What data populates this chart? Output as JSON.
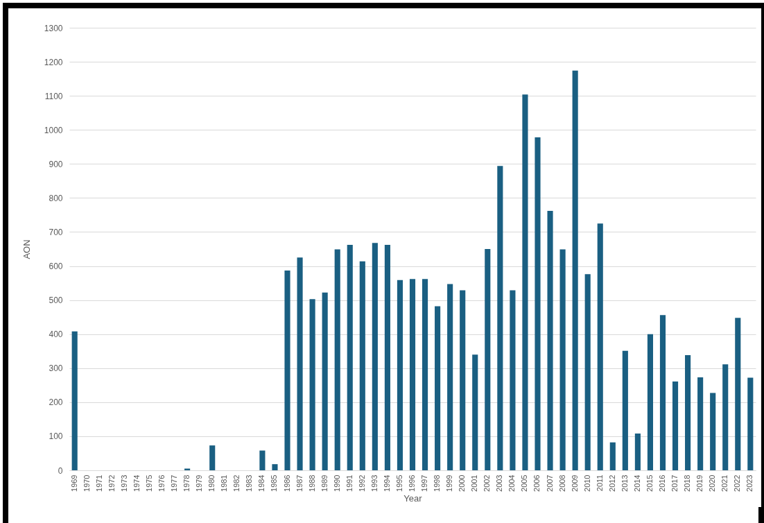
{
  "chart_data": {
    "type": "bar",
    "xlabel": "Year",
    "ylabel": "AON",
    "categories": [
      "1969",
      "1970",
      "1971",
      "1972",
      "1973",
      "1974",
      "1975",
      "1976",
      "1977",
      "1978",
      "1979",
      "1980",
      "1981",
      "1982",
      "1983",
      "1984",
      "1985",
      "1986",
      "1987",
      "1988",
      "1989",
      "1990",
      "1991",
      "1992",
      "1993",
      "1994",
      "1995",
      "1996",
      "1997",
      "1998",
      "1999",
      "2000",
      "2001",
      "2002",
      "2003",
      "2004",
      "2005",
      "2006",
      "2007",
      "2008",
      "2009",
      "2010",
      "2011",
      "2012",
      "2013",
      "2014",
      "2015",
      "2016",
      "2017",
      "2018",
      "2019",
      "2020",
      "2021",
      "2022",
      "2023"
    ],
    "values": [
      408,
      0,
      0,
      0,
      0,
      0,
      0,
      0,
      0,
      5,
      0,
      73,
      0,
      0,
      0,
      58,
      18,
      587,
      625,
      503,
      522,
      649,
      662,
      614,
      668,
      662,
      559,
      562,
      562,
      482,
      547,
      529,
      340,
      650,
      894,
      529,
      1104,
      978,
      762,
      649,
      1174,
      576,
      725,
      82,
      351,
      108,
      400,
      456,
      261,
      338,
      273,
      227,
      311,
      448,
      272
    ],
    "color": "#1a5f82",
    "ylim": [
      0,
      1300
    ],
    "yticks": [
      0,
      100,
      200,
      300,
      400,
      500,
      600,
      700,
      800,
      900,
      1000,
      1100,
      1200,
      1300
    ],
    "grid": "y"
  }
}
